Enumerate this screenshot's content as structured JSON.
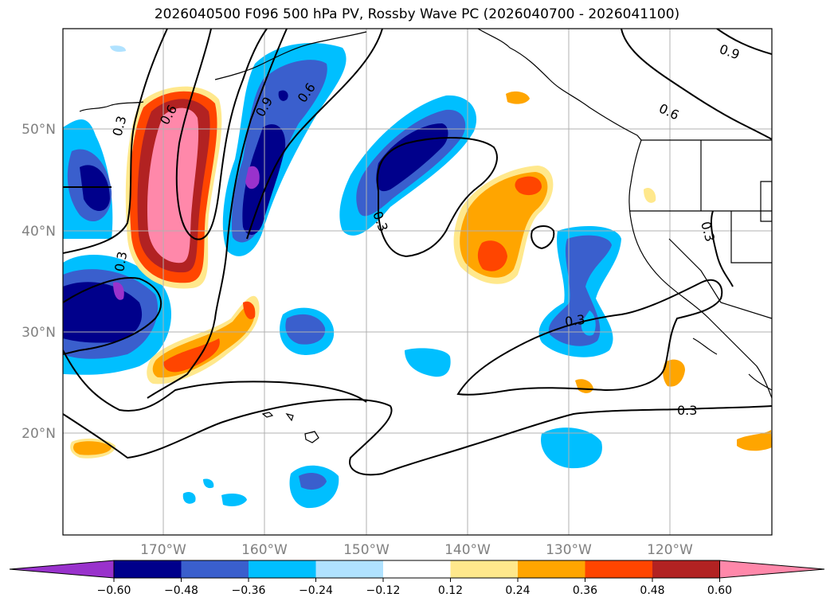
{
  "title": "2026040500 F096 500 hPa PV, Rossby Wave PC (2026040700 - 2026041100)",
  "map": {
    "lat_ticks": [
      "50°N",
      "40°N",
      "30°N",
      "20°N"
    ],
    "lon_ticks": [
      "170°W",
      "160°W",
      "150°W",
      "140°W",
      "130°W",
      "120°W"
    ],
    "contour_labels": [
      "0.3",
      "0.6",
      "0.3",
      "0.9",
      "0.6",
      "0.3",
      "0.9",
      "0.6",
      "0.3",
      "0.3",
      "0.3"
    ]
  },
  "colorbar": {
    "tick_labels": [
      "−0.60",
      "−0.48",
      "−0.36",
      "−0.24",
      "−0.12",
      "0.12",
      "0.24",
      "0.36",
      "0.48",
      "0.60"
    ],
    "colors": [
      "#9932cc",
      "#00008b",
      "#3a5fcd",
      "#00bfff",
      "#b0e2ff",
      "#ffffff",
      "#ffe88c",
      "#ffa500",
      "#ff4500",
      "#b22222",
      "#ff88aa"
    ]
  }
}
